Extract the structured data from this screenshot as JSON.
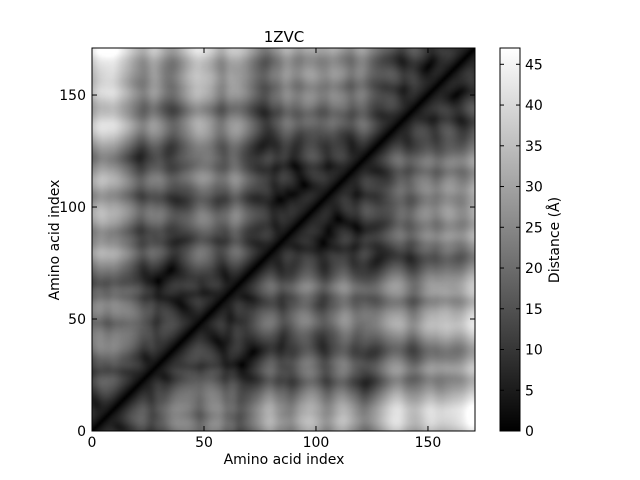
{
  "chart_data": {
    "type": "heatmap",
    "title": "1ZVC",
    "xlabel": "Amino acid index",
    "ylabel": "Amino acid index",
    "xlim": [
      0,
      171
    ],
    "ylim": [
      0,
      171
    ],
    "x_ticks": [
      0,
      50,
      100,
      150
    ],
    "y_ticks": [
      0,
      50,
      100,
      150
    ],
    "colorbar": {
      "label": "Distance (Å)",
      "range": [
        0,
        47
      ],
      "ticks": [
        0,
        5,
        10,
        15,
        20,
        25,
        30,
        35,
        40,
        45
      ],
      "colormap": "grayscale",
      "low_color": "#000000",
      "high_color": "#ffffff"
    },
    "description_values": {
      "matrix_size": 171,
      "diagonal_distance": 0
    }
  }
}
